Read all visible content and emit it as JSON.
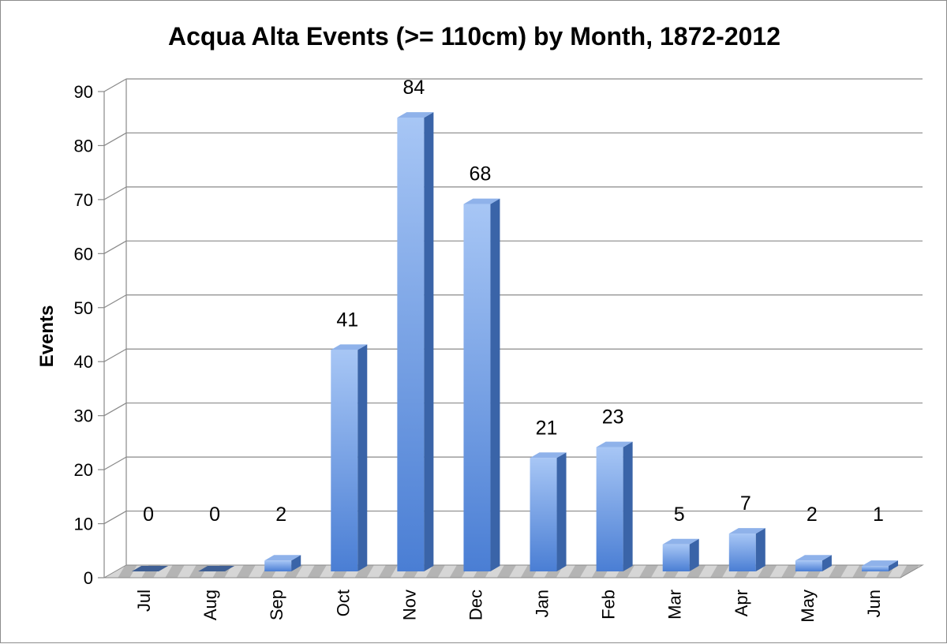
{
  "chart_data": {
    "type": "bar",
    "title": "Acqua Alta Events (>= 110cm) by Month, 1872-2012",
    "xlabel": "",
    "ylabel": "Events",
    "categories": [
      "Jul",
      "Aug",
      "Sep",
      "Oct",
      "Nov",
      "Dec",
      "Jan",
      "Feb",
      "Mar",
      "Apr",
      "May",
      "Jun"
    ],
    "values": [
      0,
      0,
      2,
      41,
      84,
      68,
      21,
      23,
      5,
      7,
      2,
      1
    ],
    "ylim": [
      0,
      90
    ],
    "yticks": [
      0,
      10,
      20,
      30,
      40,
      50,
      60,
      70,
      80,
      90
    ],
    "grid": true,
    "legend": "none",
    "data_labels": true,
    "style": "3d-column",
    "colors": {
      "bar_front_light": "#a7c6f5",
      "bar_front_dark": "#4a7ed4",
      "bar_side": "#3a64a8",
      "bar_top": "#8fb2ea",
      "floor_light": "#e2e2e2",
      "floor_dark": "#9a9a9a"
    }
  }
}
